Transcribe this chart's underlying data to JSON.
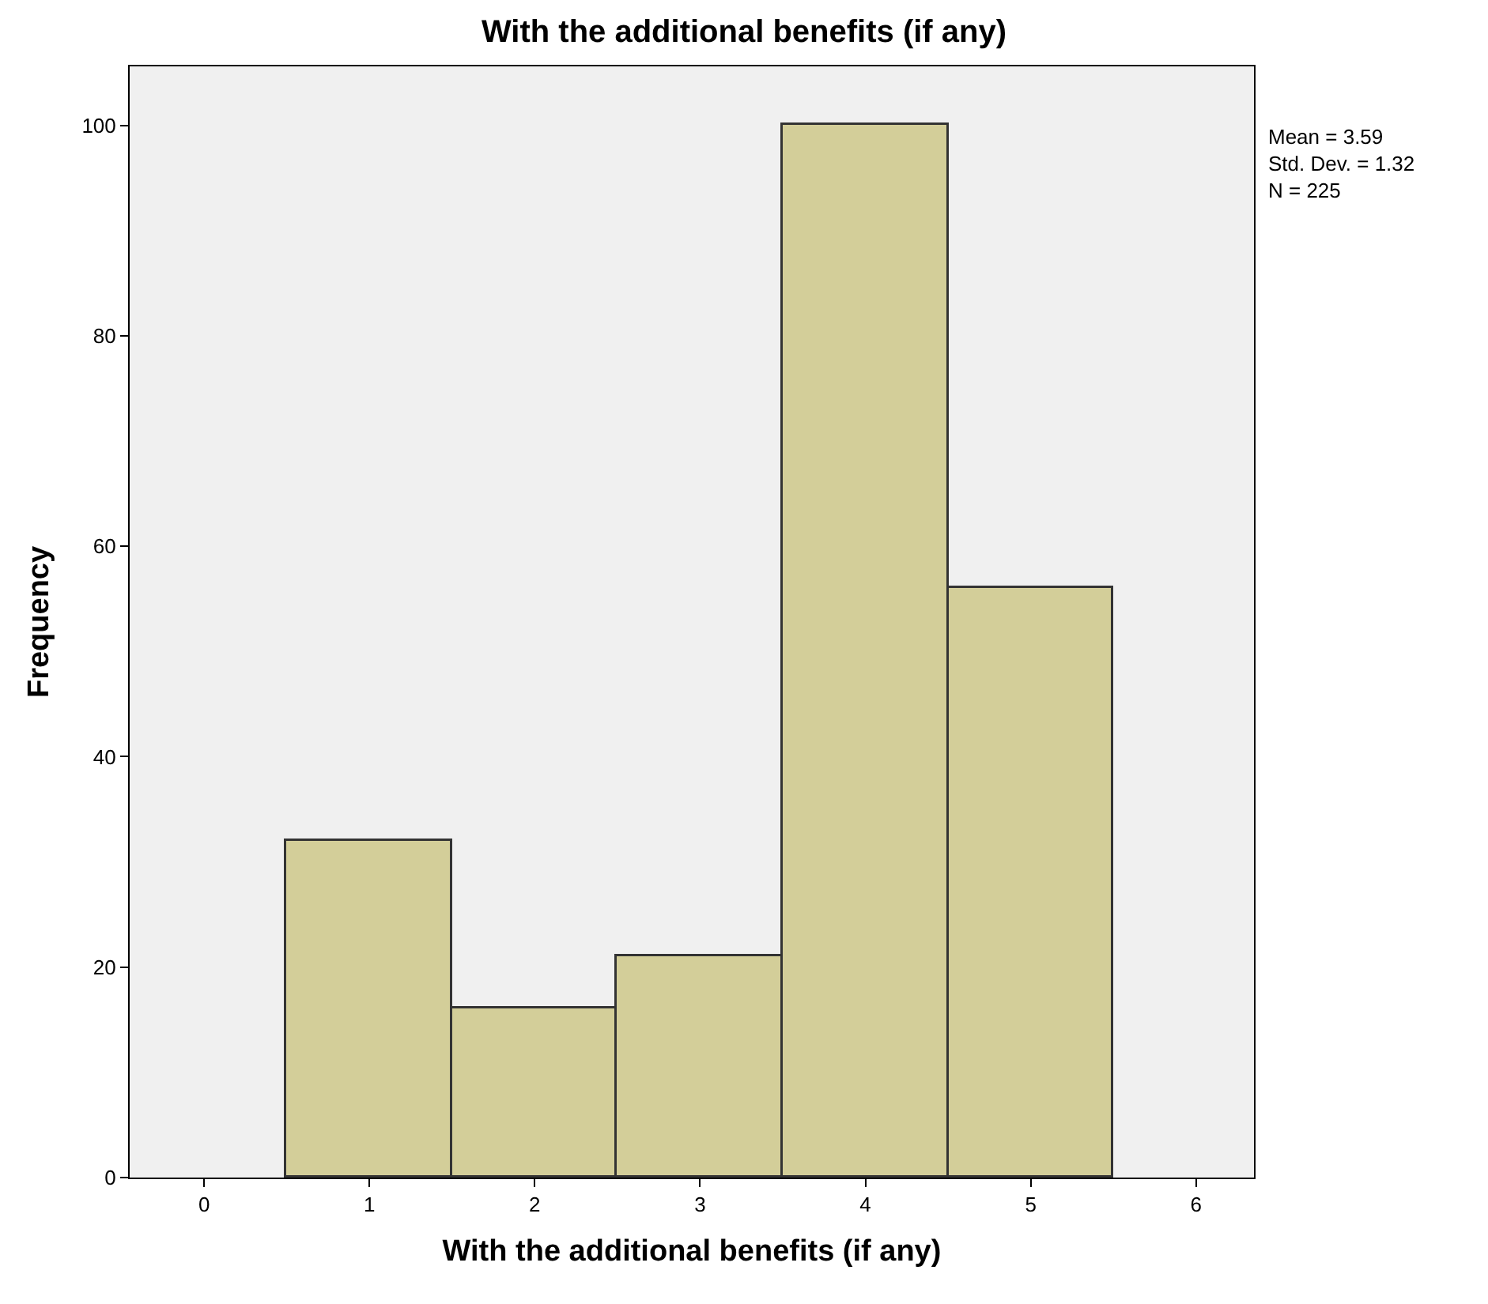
{
  "chart_data": {
    "type": "histogram",
    "title": "With the additional benefits (if any)",
    "xlabel": "With the additional benefits (if any)",
    "ylabel": "Frequency",
    "bins": [
      0.5,
      1.5,
      2.5,
      3.5,
      4.5,
      5.5
    ],
    "values": [
      32,
      16,
      21,
      100,
      56
    ],
    "color": "#d3ce99",
    "xlim": [
      -0.45,
      6.35
    ],
    "xticks": [
      0,
      1,
      2,
      3,
      4,
      5,
      6
    ],
    "ylim": [
      0,
      105.6
    ],
    "yticks": [
      0,
      20,
      40,
      60,
      80,
      100
    ],
    "grid": false,
    "annotations": [
      "Mean = 3.59",
      "Std. Dev. = 1.32",
      "N = 225"
    ]
  }
}
